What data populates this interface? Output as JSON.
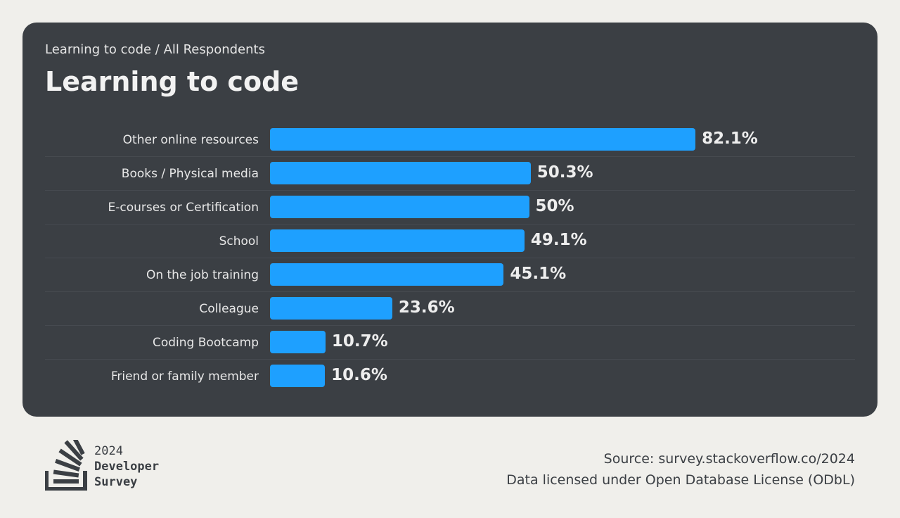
{
  "breadcrumb": "Learning to code / All Respondents",
  "title": "Learning to code",
  "chart_data": {
    "type": "bar",
    "orientation": "horizontal",
    "title": "Learning to code",
    "categories": [
      "Other online resources",
      "Books / Physical media",
      "E-courses or Certification",
      "School",
      "On the job training",
      "Colleague",
      "Coding Bootcamp",
      "Friend or family member"
    ],
    "values": [
      82.1,
      50.3,
      50,
      49.1,
      45.1,
      23.6,
      10.7,
      10.6
    ],
    "value_labels": [
      "82.1%",
      "50.3%",
      "50%",
      "49.1%",
      "45.1%",
      "23.6%",
      "10.7%",
      "10.6%"
    ],
    "unit": "%",
    "xlim": [
      0,
      100
    ],
    "bar_color": "#1ea0ff",
    "grid": false
  },
  "logo": {
    "year": "2024",
    "line1": "Developer",
    "line2": "Survey"
  },
  "footer": {
    "source": "Source: survey.stackoverflow.co/2024",
    "license": "Data licensed under Open Database License (ODbL)"
  },
  "colors": {
    "background": "#f0efeb",
    "card": "#3b3f44",
    "bar": "#1ea0ff"
  }
}
